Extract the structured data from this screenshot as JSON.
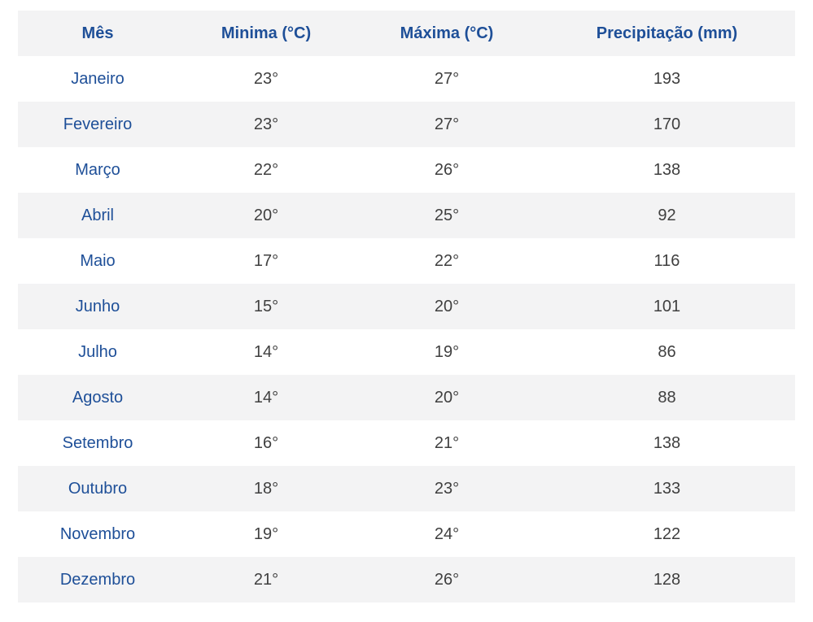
{
  "table": {
    "headers": [
      "Mês",
      "Minima (°C)",
      "Máxima (°C)",
      "Precipitação (mm)"
    ],
    "rows": [
      {
        "month": "Janeiro",
        "min": "23°",
        "max": "27°",
        "precip": "193"
      },
      {
        "month": "Fevereiro",
        "min": "23°",
        "max": "27°",
        "precip": "170"
      },
      {
        "month": "Março",
        "min": "22°",
        "max": "26°",
        "precip": "138"
      },
      {
        "month": "Abril",
        "min": "20°",
        "max": "25°",
        "precip": "92"
      },
      {
        "month": "Maio",
        "min": "17°",
        "max": "22°",
        "precip": "116"
      },
      {
        "month": "Junho",
        "min": "15°",
        "max": "20°",
        "precip": "101"
      },
      {
        "month": "Julho",
        "min": "14°",
        "max": "19°",
        "precip": "86"
      },
      {
        "month": "Agosto",
        "min": "14°",
        "max": "20°",
        "precip": "88"
      },
      {
        "month": "Setembro",
        "min": "16°",
        "max": "21°",
        "precip": "138"
      },
      {
        "month": "Outubro",
        "min": "18°",
        "max": "23°",
        "precip": "133"
      },
      {
        "month": "Novembro",
        "min": "19°",
        "max": "24°",
        "precip": "122"
      },
      {
        "month": "Dezembro",
        "min": "21°",
        "max": "26°",
        "precip": "128"
      }
    ]
  },
  "colors": {
    "header_text": "#1e4f98",
    "month_text": "#1e4f98",
    "value_text": "#3f3f3f",
    "stripe_bg": "#f3f3f4"
  }
}
